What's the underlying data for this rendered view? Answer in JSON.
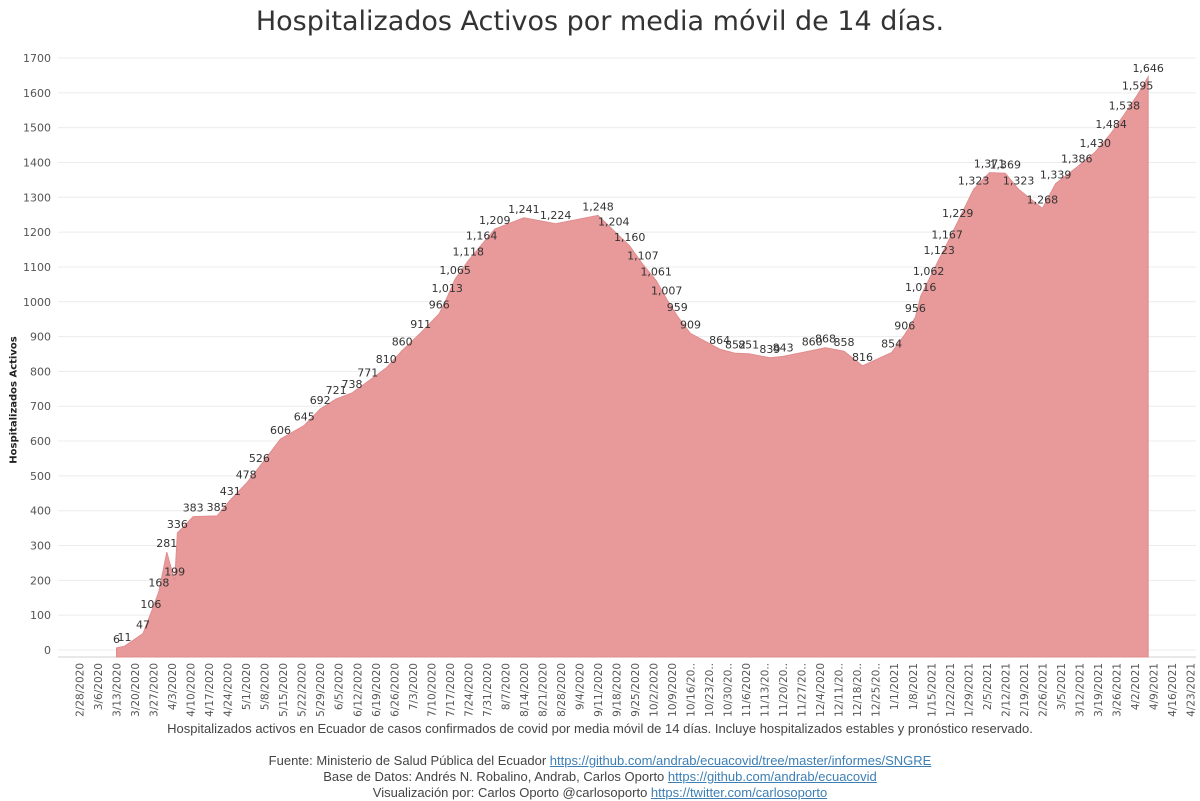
{
  "title": "Hospitalizados Activos por media móvil de 14 días.",
  "caption": "Hospitalizados activos en Ecuador de casos confirmados de covid por media móvil de 14 días. Incluye hospitalizados estables y pronóstico reservado.",
  "credits": {
    "source_label": "Fuente: Ministerio de Salud Pública del Ecuador",
    "source_link": "https://github.com/andrab/ecuacovid/tree/master/informes/SNGRE",
    "db_label": "Base de Datos: Andrés N. Robalino, Andrab, Carlos Oporto",
    "db_link": "https://github.com/andrab/ecuacovid",
    "viz_label": "Visualización por: Carlos Oporto @carlosoporto",
    "viz_link": "https://twitter.com/carlosoporto"
  },
  "colors": {
    "area": "#e8999a",
    "grid": "#ececec",
    "text": "#333333"
  },
  "chart_data": {
    "type": "area",
    "title": "Hospitalizados Activos por media móvil de 14 días.",
    "ylabel": "Hospitalizados Activos",
    "xlabel": "",
    "ylim": [
      0,
      1700
    ],
    "yticks": [
      0,
      100,
      200,
      300,
      400,
      500,
      600,
      700,
      800,
      900,
      1000,
      1100,
      1200,
      1300,
      1400,
      1500,
      1600,
      1700
    ],
    "grid": true,
    "xtick_labels": [
      "2/28/2020",
      "3/6/2020",
      "3/13/2020",
      "3/20/2020",
      "3/27/2020",
      "4/3/2020",
      "4/10/2020",
      "4/17/2020",
      "4/24/2020",
      "5/1/2020",
      "5/8/2020",
      "5/15/2020",
      "5/22/2020",
      "5/29/2020",
      "6/5/2020",
      "6/12/2020",
      "6/19/2020",
      "6/26/2020",
      "7/3/2020",
      "7/10/2020",
      "7/17/2020",
      "7/24/2020",
      "7/31/2020",
      "8/7/2020",
      "8/14/2020",
      "8/21/2020",
      "8/28/2020",
      "9/4/2020",
      "9/11/2020",
      "9/18/2020",
      "9/25/2020",
      "10/2/2020",
      "10/9/2020",
      "10/16/20..",
      "10/23/20..",
      "10/30/20..",
      "11/6/2020",
      "11/13/20..",
      "11/20/20..",
      "11/27/20..",
      "12/4/2020",
      "12/11/20..",
      "12/18/20..",
      "12/25/20..",
      "1/1/2021",
      "1/8/2021",
      "1/15/2021",
      "1/22/2021",
      "1/29/2021",
      "2/5/2021",
      "2/12/2021",
      "2/19/2021",
      "2/26/2021",
      "3/5/2021",
      "3/12/2021",
      "3/19/2021",
      "3/26/2021",
      "4/2/2021",
      "4/9/2021",
      "4/16/2021",
      "4/23/2021"
    ],
    "series": [
      {
        "values": [
          null,
          null,
          6,
          11,
          47,
          106,
          168,
          199,
          281,
          336,
          383,
          385,
          431,
          478,
          526,
          606,
          645,
          692,
          721,
          738,
          771,
          810,
          860,
          911,
          966,
          1013,
          1065,
          1118,
          1164,
          1209,
          1241,
          1224,
          1224,
          1248,
          1204,
          1160,
          1107,
          1061,
          1007,
          959,
          909,
          864,
          852,
          851,
          839,
          843,
          860,
          868,
          858,
          816,
          854,
          906,
          956,
          1016,
          1062,
          1123,
          1167,
          1229,
          1323,
          1371,
          1369,
          1323,
          1268,
          1339,
          1386,
          1430,
          1484,
          1538,
          1595,
          1646
        ]
      }
    ],
    "data_labels": [
      {
        "x": "3/13/2020",
        "label": "6"
      },
      {
        "x": "3/16/2020",
        "label": "11"
      },
      {
        "x": "3/23/2020",
        "label": "47"
      },
      {
        "x": "3/26/2020",
        "label": "106"
      },
      {
        "x": "3/29/2020",
        "label": "168"
      },
      {
        "x": "4/4/2020",
        "label": "199"
      },
      {
        "x": "4/1/2020",
        "label": "281"
      },
      {
        "x": "4/5/2020",
        "label": "336"
      },
      {
        "x": "4/11/2020",
        "label": "383"
      },
      {
        "x": "4/20/2020",
        "label": "385"
      },
      {
        "x": "4/25/2020",
        "label": "431"
      },
      {
        "x": "5/1/2020",
        "label": "478"
      },
      {
        "x": "5/6/2020",
        "label": "526"
      },
      {
        "x": "5/14/2020",
        "label": "606"
      },
      {
        "x": "5/23/2020",
        "label": "645"
      },
      {
        "x": "5/29/2020",
        "label": "692"
      },
      {
        "x": "6/4/2020",
        "label": "721"
      },
      {
        "x": "6/10/2020",
        "label": "738"
      },
      {
        "x": "6/16/2020",
        "label": "771"
      },
      {
        "x": "6/23/2020",
        "label": "810"
      },
      {
        "x": "6/29/2020",
        "label": "860"
      },
      {
        "x": "7/6/2020",
        "label": "911"
      },
      {
        "x": "7/13/2020",
        "label": "966"
      },
      {
        "x": "7/16/2020",
        "label": "1,013"
      },
      {
        "x": "7/19/2020",
        "label": "1,065"
      },
      {
        "x": "7/24/2020",
        "label": "1,118"
      },
      {
        "x": "7/29/2020",
        "label": "1,164"
      },
      {
        "x": "8/3/2020",
        "label": "1,209"
      },
      {
        "x": "8/14/2020",
        "label": "1,241"
      },
      {
        "x": "8/26/2020",
        "label": "1,224"
      },
      {
        "x": "9/11/2020",
        "label": "1,248"
      },
      {
        "x": "9/17/2020",
        "label": "1,204"
      },
      {
        "x": "9/23/2020",
        "label": "1,160"
      },
      {
        "x": "9/28/2020",
        "label": "1,107"
      },
      {
        "x": "10/3/2020",
        "label": "1,061"
      },
      {
        "x": "10/7/2020",
        "label": "1,007"
      },
      {
        "x": "10/11/2020",
        "label": "959"
      },
      {
        "x": "10/16/2020",
        "label": "909"
      },
      {
        "x": "10/27/2020",
        "label": "864"
      },
      {
        "x": "11/2/2020",
        "label": "852"
      },
      {
        "x": "11/7/2020",
        "label": "851"
      },
      {
        "x": "11/15/2020",
        "label": "839"
      },
      {
        "x": "11/20/2020",
        "label": "843"
      },
      {
        "x": "12/1/2020",
        "label": "860"
      },
      {
        "x": "12/6/2020",
        "label": "868"
      },
      {
        "x": "12/13/2020",
        "label": "858"
      },
      {
        "x": "12/20/2020",
        "label": "816"
      },
      {
        "x": "12/31/2020",
        "label": "854"
      },
      {
        "x": "1/5/2021",
        "label": "906"
      },
      {
        "x": "1/9/2021",
        "label": "956"
      },
      {
        "x": "1/11/2021",
        "label": "1,016"
      },
      {
        "x": "1/14/2021",
        "label": "1,062"
      },
      {
        "x": "1/18/2021",
        "label": "1,123"
      },
      {
        "x": "1/21/2021",
        "label": "1,167"
      },
      {
        "x": "1/25/2021",
        "label": "1,229"
      },
      {
        "x": "1/31/2021",
        "label": "1,323"
      },
      {
        "x": "2/6/2021",
        "label": "1,371"
      },
      {
        "x": "2/12/2021",
        "label": "1,369"
      },
      {
        "x": "2/17/2021",
        "label": "1,323"
      },
      {
        "x": "2/26/2021",
        "label": "1,268"
      },
      {
        "x": "3/3/2021",
        "label": "1,339"
      },
      {
        "x": "3/11/2021",
        "label": "1,386"
      },
      {
        "x": "3/18/2021",
        "label": "1,430"
      },
      {
        "x": "3/24/2021",
        "label": "1,484"
      },
      {
        "x": "3/29/2021",
        "label": "1,538"
      },
      {
        "x": "4/3/2021",
        "label": "1,595"
      },
      {
        "x": "4/7/2021",
        "label": "1,646"
      }
    ]
  }
}
